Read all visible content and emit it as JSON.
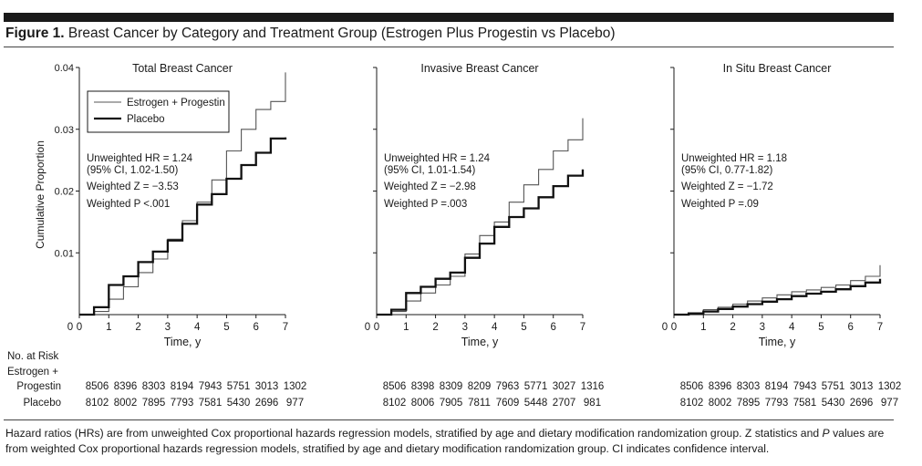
{
  "figure": {
    "label": "Figure 1.",
    "title": "Breast Cancer by Category and Treatment Group (Estrogen Plus Progestin vs Placebo)"
  },
  "footnote": {
    "part1": "Hazard ratios (HRs) are from unweighted Cox proportional hazards regression models, stratified by age and dietary modification randomization group. Z statistics and ",
    "p_italic": "P",
    "part2": " values are from weighted Cox proportional hazards regression models, stratified by age and dietary modification randomization group. CI indicates confidence interval."
  },
  "legend": {
    "series": [
      "Estrogen + Progestin",
      "Placebo"
    ]
  },
  "risk_table": {
    "header": "No. at Risk",
    "row_labels": [
      [
        "Estrogen +",
        "Progestin"
      ],
      [
        "Placebo"
      ]
    ]
  },
  "colors": {
    "ink": "#1a1a1a",
    "estrogen_line": "#555555",
    "placebo_line": "#111111"
  },
  "chart_data": [
    {
      "type": "line",
      "title": "Total Breast Cancer",
      "xlabel": "Time, y",
      "ylabel": "Cumulative Proportion",
      "xlim": [
        0,
        7
      ],
      "ylim": [
        0,
        0.04
      ],
      "xticks": [
        0,
        1,
        2,
        3,
        4,
        5,
        6,
        7
      ],
      "yticks": [
        0.01,
        0.02,
        0.03,
        0.04
      ],
      "ytick_labels": [
        "0.01",
        "0.02",
        "0.03",
        "0.04"
      ],
      "stats": [
        "Unweighted HR = 1.24",
        "(95% CI, 1.02-1.50)",
        "Weighted Z = −3.53",
        "Weighted P <.001"
      ],
      "x": [
        0,
        0.5,
        1,
        1.5,
        2,
        2.5,
        3,
        3.5,
        4,
        4.5,
        5,
        5.5,
        6,
        6.5,
        7
      ],
      "series": [
        {
          "name": "Estrogen + Progestin",
          "values": [
            0,
            0.0005,
            0.0025,
            0.0045,
            0.0068,
            0.009,
            0.0122,
            0.0152,
            0.0182,
            0.0218,
            0.0265,
            0.03,
            0.0332,
            0.0345,
            0.0392
          ]
        },
        {
          "name": "Placebo",
          "values": [
            0,
            0.0012,
            0.0048,
            0.0062,
            0.0085,
            0.0102,
            0.012,
            0.0147,
            0.0178,
            0.0195,
            0.022,
            0.0242,
            0.0262,
            0.0285,
            0.0287
          ]
        }
      ],
      "at_risk": [
        [
          "8506",
          "8396",
          "8303",
          "8194",
          "7943",
          "5751",
          "3013",
          "1302"
        ],
        [
          "8102",
          "8002",
          "7895",
          "7793",
          "7581",
          "5430",
          "2696",
          "977"
        ]
      ]
    },
    {
      "type": "line",
      "title": "Invasive Breast Cancer",
      "xlabel": "Time, y",
      "ylabel": "",
      "xlim": [
        0,
        7
      ],
      "ylim": [
        0,
        0.04
      ],
      "xticks": [
        0,
        1,
        2,
        3,
        4,
        5,
        6,
        7
      ],
      "yticks": [
        0.01,
        0.02,
        0.03,
        0.04
      ],
      "ytick_labels": [],
      "stats": [
        "Unweighted HR = 1.24",
        "(95% CI, 1.01-1.54)",
        "Weighted Z = −2.98",
        "Weighted P =.003"
      ],
      "x": [
        0,
        0.5,
        1,
        1.5,
        2,
        2.5,
        3,
        3.5,
        4,
        4.5,
        5,
        5.5,
        6,
        6.5,
        7
      ],
      "series": [
        {
          "name": "Estrogen + Progestin",
          "values": [
            0,
            0.0005,
            0.0022,
            0.0035,
            0.0048,
            0.0062,
            0.0098,
            0.0128,
            0.015,
            0.0182,
            0.021,
            0.0235,
            0.0265,
            0.0283,
            0.0318
          ]
        },
        {
          "name": "Placebo",
          "values": [
            0,
            0.0008,
            0.0035,
            0.0045,
            0.0058,
            0.0068,
            0.0092,
            0.0115,
            0.0142,
            0.0158,
            0.0172,
            0.019,
            0.0208,
            0.0225,
            0.0235
          ]
        }
      ],
      "at_risk": [
        [
          "8506",
          "8398",
          "8309",
          "8209",
          "7963",
          "5771",
          "3027",
          "1316"
        ],
        [
          "8102",
          "8006",
          "7905",
          "7811",
          "7609",
          "5448",
          "2707",
          "981"
        ]
      ]
    },
    {
      "type": "line",
      "title": "In Situ Breast Cancer",
      "xlabel": "Time, y",
      "ylabel": "",
      "xlim": [
        0,
        7
      ],
      "ylim": [
        0,
        0.04
      ],
      "xticks": [
        0,
        1,
        2,
        3,
        4,
        5,
        6,
        7
      ],
      "yticks": [
        0.01,
        0.02,
        0.03,
        0.04
      ],
      "ytick_labels": [],
      "stats": [
        "Unweighted HR = 1.18",
        "(95% CI, 0.77-1.82)",
        "Weighted Z = −1.72",
        "Weighted P =.09"
      ],
      "x": [
        0,
        0.5,
        1,
        1.5,
        2,
        2.5,
        3,
        3.5,
        4,
        4.5,
        5,
        5.5,
        6,
        6.5,
        7
      ],
      "series": [
        {
          "name": "Estrogen + Progestin",
          "values": [
            0,
            0.0003,
            0.0008,
            0.0012,
            0.0017,
            0.0022,
            0.0027,
            0.0032,
            0.0037,
            0.004,
            0.0044,
            0.0048,
            0.0055,
            0.0062,
            0.008
          ]
        },
        {
          "name": "Placebo",
          "values": [
            0,
            0.0002,
            0.0005,
            0.0009,
            0.0013,
            0.0017,
            0.0021,
            0.0025,
            0.003,
            0.0034,
            0.0037,
            0.0041,
            0.0046,
            0.0052,
            0.0058
          ]
        }
      ],
      "at_risk": [
        [
          "8506",
          "8396",
          "8303",
          "8194",
          "7943",
          "5751",
          "3013",
          "1302"
        ],
        [
          "8102",
          "8002",
          "7895",
          "7793",
          "7581",
          "5430",
          "2696",
          "977"
        ]
      ]
    }
  ]
}
